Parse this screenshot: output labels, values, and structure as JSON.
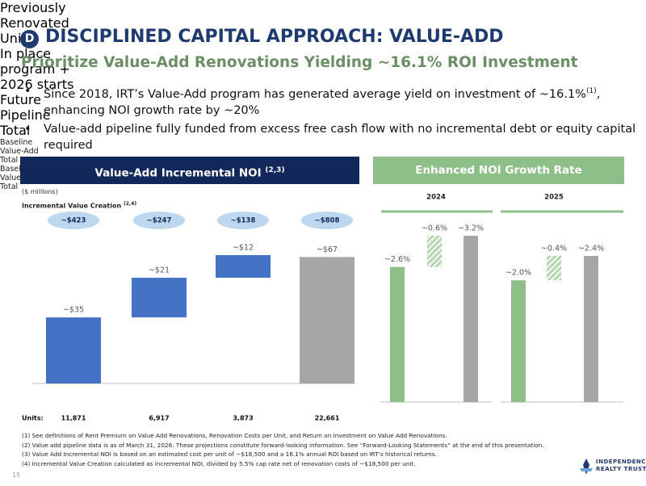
{
  "header": {
    "badge": "D",
    "title": "DISCIPLINED CAPITAL APPROACH: VALUE-ADD",
    "subtitle": "Prioritize Value-Add Renovations Yielding ~16.1% ROI Investment"
  },
  "bullets": [
    {
      "text": "Since 2018, IRT’s Value-Add program has generated average yield on investment of ~16.1%",
      "sup": "(1)",
      "text_after": ", enhancing NOI growth rate by ~20%"
    },
    {
      "text": "Value-add pipeline fully funded from excess free cash flow with no incremental debt or equity capital required"
    }
  ],
  "panels": [
    {
      "title": "Value-Add Incremental NOI",
      "sup": "(2,3)"
    },
    {
      "title": "Enhanced NOI Growth Rate"
    }
  ],
  "chart_data": [
    {
      "type": "waterfall",
      "subtitle": "($ millions)",
      "annotation": "Incremental Value Creation",
      "annotation_sup": "(2,4)",
      "categories": [
        "Previously Renovated Units",
        "In place program + 2026 starts",
        "Future Pipeline",
        "Total"
      ],
      "values": [
        35,
        21,
        12,
        67
      ],
      "value_labels": [
        "~$35",
        "~$21",
        "~$12",
        "~$67"
      ],
      "colors": [
        "#4472c4",
        "#4472c4",
        "#4472c4",
        "#a6a6a6"
      ],
      "pills": {
        "values": [
          423,
          247,
          138,
          808
        ],
        "labels": [
          "~$423",
          "~$247",
          "~$138",
          "~$808"
        ],
        "color": "#bdd7ee"
      },
      "units_label": "Units:",
      "units": [
        {
          "value": 11871,
          "label": "11,871"
        },
        {
          "value": 6917,
          "label": "6,917"
        },
        {
          "value": 3873,
          "label": "3,873"
        },
        {
          "value": 22661,
          "label": "22,661"
        }
      ]
    },
    {
      "type": "waterfall",
      "title": "2024",
      "categories": [
        "Baseline",
        "Value-Add",
        "Total"
      ],
      "values": [
        2.6,
        0.6,
        3.2
      ],
      "value_labels": [
        "~2.6%",
        "~0.6%",
        "~3.2%"
      ],
      "colors": [
        "#8fbf88",
        "#8fbf88",
        "#a6a6a6"
      ],
      "hatch": [
        false,
        true,
        false
      ]
    },
    {
      "type": "waterfall",
      "title": "2025",
      "categories": [
        "Baseline",
        "Value-Add",
        "Total"
      ],
      "values": [
        2.0,
        0.4,
        2.4
      ],
      "value_labels": [
        "~2.0%",
        "~0.4%",
        "~2.4%"
      ],
      "colors": [
        "#8fbf88",
        "#8fbf88",
        "#a6a6a6"
      ],
      "hatch": [
        false,
        true,
        false
      ]
    }
  ],
  "footnotes": [
    "(1) See definitions of Rent Premium on Value Add Renovations, Renovation Costs per Unit, and Return on Investment on Value Add Renovations.",
    "(2) Value add pipeline data is as of March 31, 2026. These projections constitute forward-looking information. See “Forward-Looking Statements” at the end of this presentation.",
    "(3) Value Add Incremental NOI is based on an estimated cost per unit of ~$18,500 and a 16.1% annual ROI based on IRT’s historical returns.",
    "(4) Incremental Value Creation calculated as incremental NOI, divided by 5.5% cap rate net of renovation costs of ~$18,500 per unit."
  ],
  "page_number": "15",
  "logo": {
    "line1": "INDEPENDENCE",
    "line2": "REALTY TRUST"
  }
}
